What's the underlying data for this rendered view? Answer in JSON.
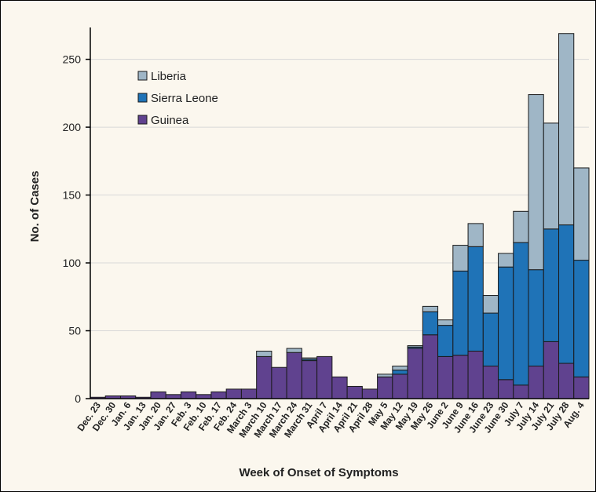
{
  "chart_data": {
    "type": "bar",
    "stacked": true,
    "xlabel": "Week of Onset of Symptoms",
    "ylabel": "No. of Cases",
    "ylim": [
      0,
      270
    ],
    "yticks": [
      0,
      50,
      100,
      150,
      200,
      250
    ],
    "grid": true,
    "legend_position": "top-left",
    "categories": [
      "Dec. 23",
      "Dec. 30",
      "Jan. 6",
      "Jan. 13",
      "Jan. 20",
      "Jan. 27",
      "Feb. 3",
      "Feb. 10",
      "Feb. 17",
      "Feb. 24",
      "March 3",
      "March 10",
      "March 17",
      "March 24",
      "March 31",
      "April 7",
      "April 14",
      "April 21",
      "April 28",
      "May 5",
      "May 12",
      "May 19",
      "May 26",
      "June 2",
      "June 9",
      "June 16",
      "June 23",
      "June 30",
      "July 7",
      "July 14",
      "July 21",
      "July 28",
      "Aug. 4"
    ],
    "series": [
      {
        "name": "Guinea",
        "color": "#60428f",
        "values": [
          1,
          2,
          2,
          1,
          5,
          3,
          5,
          3,
          5,
          7,
          7,
          31,
          23,
          34,
          28,
          31,
          16,
          9,
          7,
          16,
          18,
          37,
          47,
          31,
          32,
          35,
          24,
          14,
          10,
          24,
          42,
          26,
          16
        ]
      },
      {
        "name": "Sierra Leone",
        "color": "#1f73b7",
        "values": [
          0,
          0,
          0,
          0,
          0,
          0,
          0,
          0,
          0,
          0,
          0,
          0,
          0,
          0,
          1,
          0,
          0,
          0,
          0,
          0,
          3,
          1,
          17,
          23,
          62,
          77,
          39,
          83,
          105,
          71,
          83,
          102,
          86
        ]
      },
      {
        "name": "Liberia",
        "color": "#9fb6c6",
        "values": [
          0,
          0,
          0,
          0,
          0,
          0,
          0,
          0,
          0,
          0,
          0,
          4,
          0,
          3,
          1,
          0,
          0,
          0,
          0,
          2,
          3,
          1,
          4,
          4,
          19,
          17,
          13,
          10,
          23,
          129,
          78,
          141,
          68
        ]
      }
    ],
    "legend_order": [
      "Liberia",
      "Sierra Leone",
      "Guinea"
    ]
  }
}
